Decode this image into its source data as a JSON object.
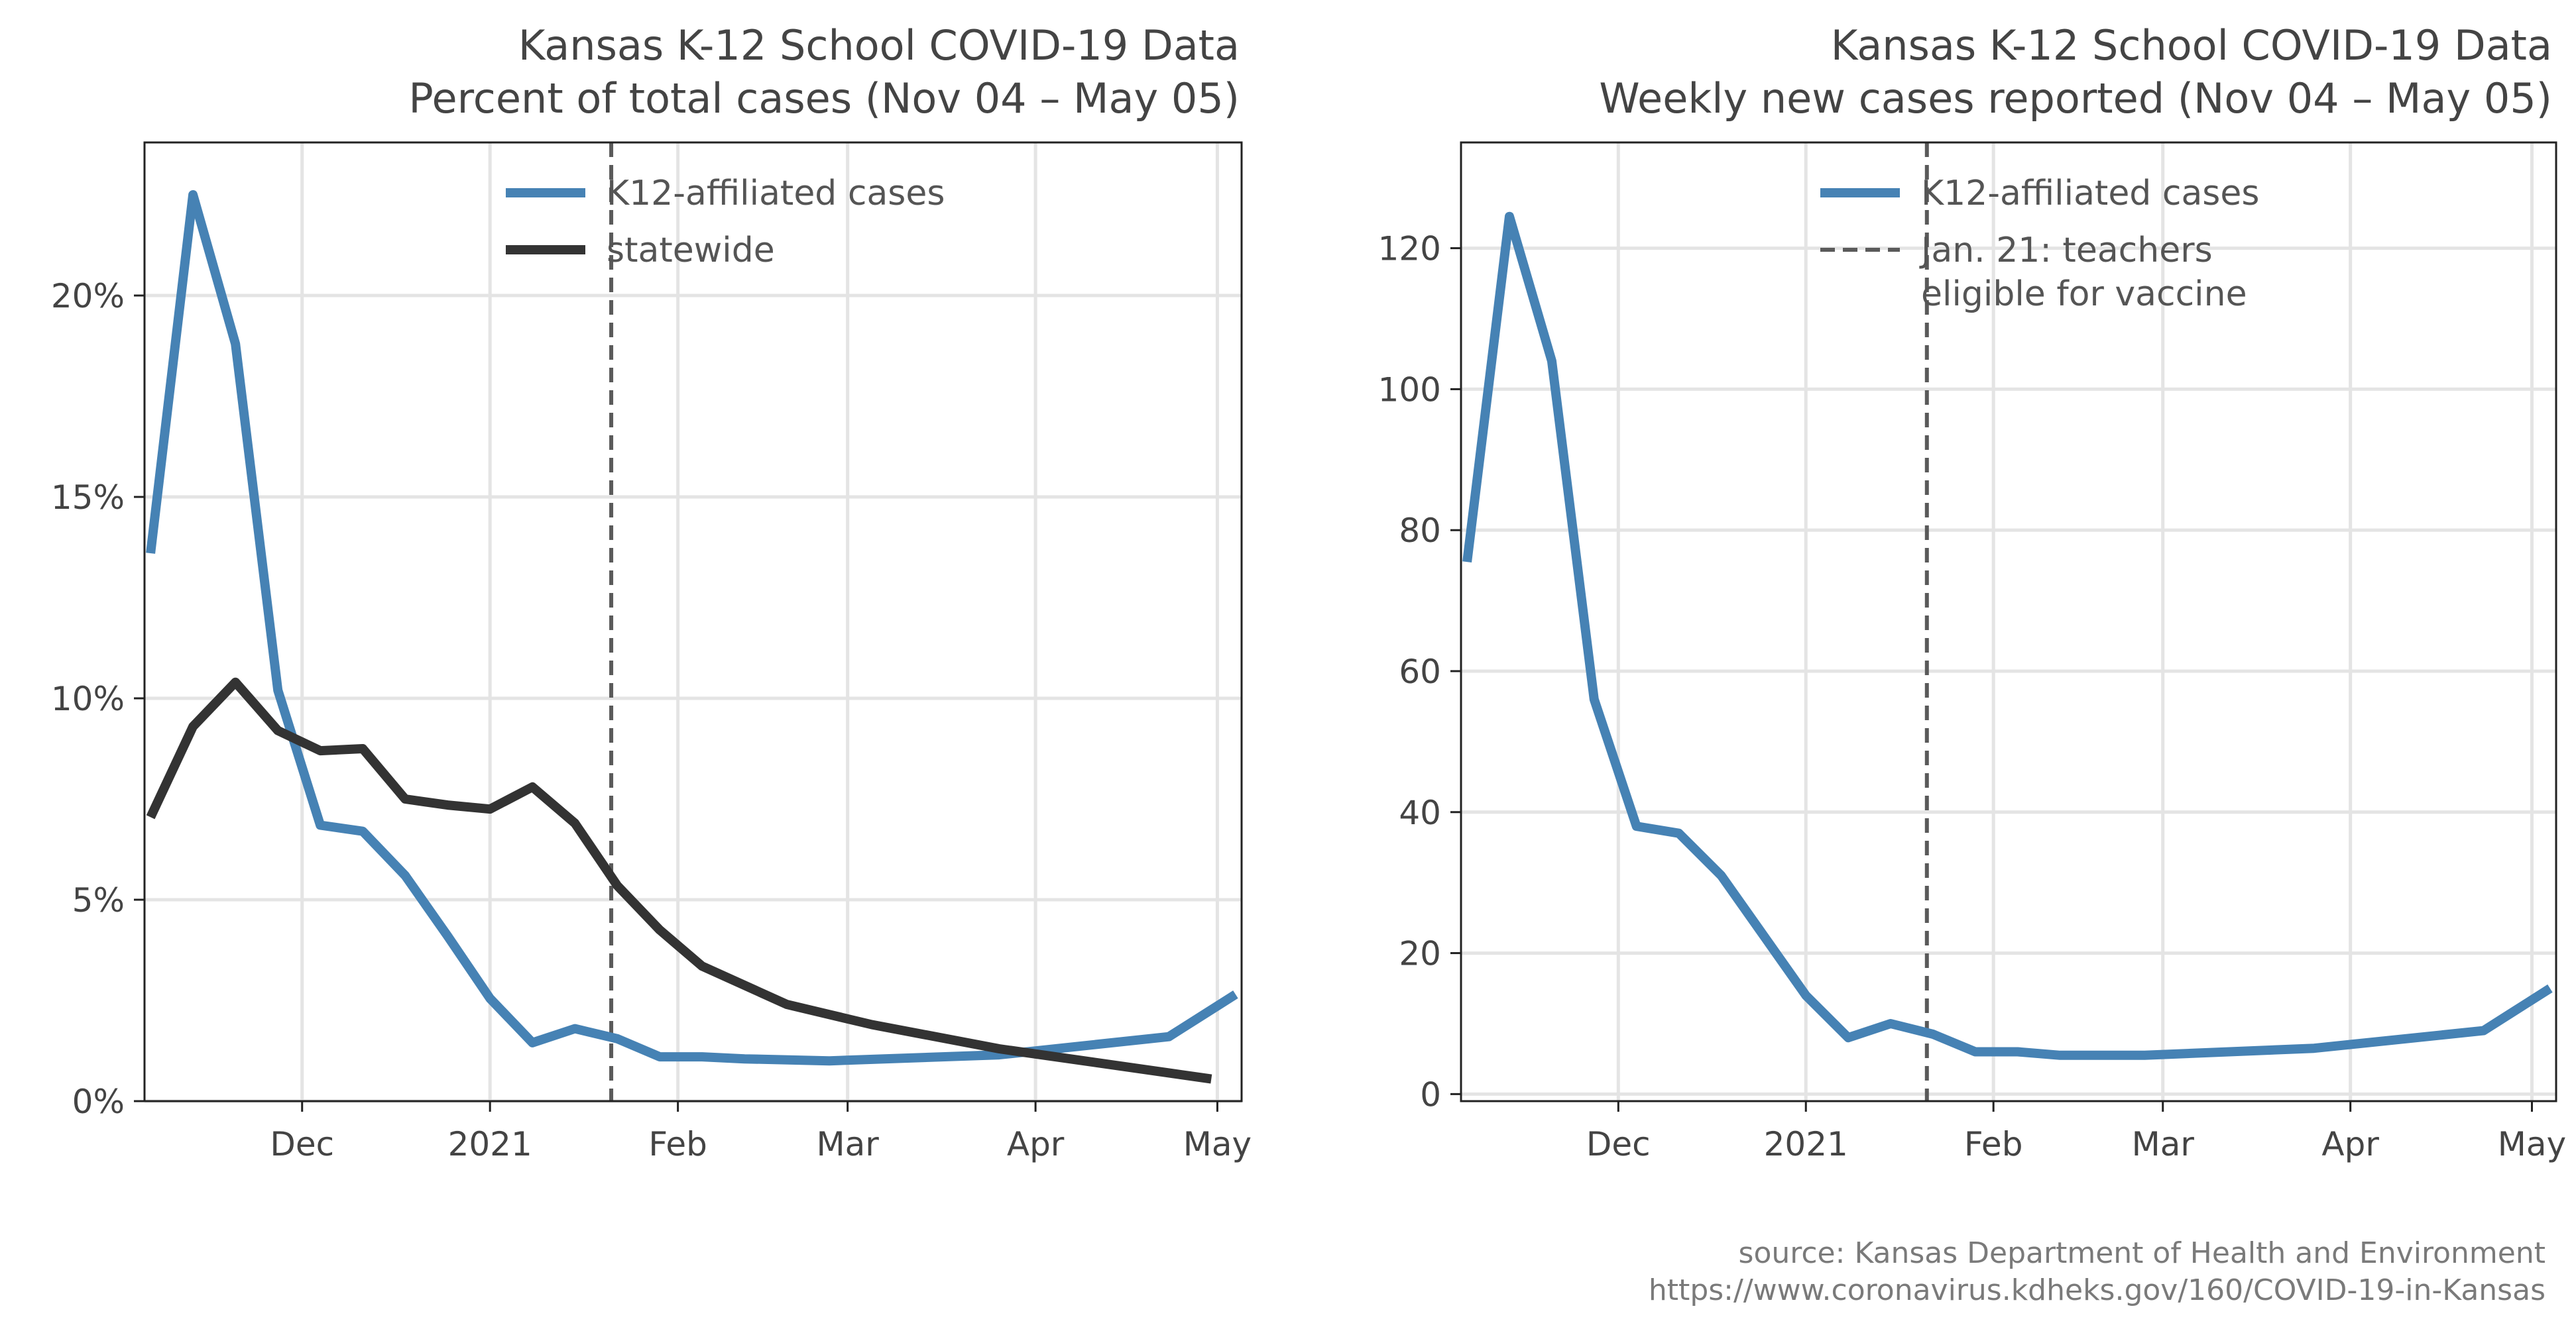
{
  "chart_data": [
    {
      "type": "line",
      "title": "Kansas K-12 School COVID-19 Data",
      "subtitle": "Percent of total cases (Nov 04 – May 05)",
      "xlabel": "",
      "ylabel": "",
      "x_ticks": [
        {
          "date": "2020-12-01",
          "label": "Dec"
        },
        {
          "date": "2021-01-01",
          "label": "2021"
        },
        {
          "date": "2021-02-01",
          "label": "Feb"
        },
        {
          "date": "2021-03-01",
          "label": "Mar"
        },
        {
          "date": "2021-04-01",
          "label": "Apr"
        },
        {
          "date": "2021-05-01",
          "label": "May"
        }
      ],
      "xlim": [
        "2020-11-05",
        "2021-05-05"
      ],
      "ylim": [
        0,
        23.8
      ],
      "y_ticks": [
        {
          "value": 0,
          "label": "0%"
        },
        {
          "value": 5,
          "label": "5%"
        },
        {
          "value": 10,
          "label": "10%"
        },
        {
          "value": 15,
          "label": "15%"
        },
        {
          "value": 20,
          "label": "20%"
        }
      ],
      "grid": true,
      "legend_position": "top-right",
      "vline": {
        "date": "2021-01-21",
        "style": "dashed",
        "color": "#5a5a5a"
      },
      "series": [
        {
          "name": "K12-affiliated cases",
          "color": "#4682b4",
          "x": [
            "2020-11-06",
            "2020-11-13",
            "2020-11-20",
            "2020-11-27",
            "2020-12-04",
            "2020-12-11",
            "2020-12-18",
            "2020-12-25",
            "2021-01-01",
            "2021-01-08",
            "2021-01-15",
            "2021-01-22",
            "2021-01-29",
            "2021-02-05",
            "2021-02-12",
            "2021-02-26",
            "2021-03-26",
            "2021-04-23",
            "2021-05-04"
          ],
          "values": [
            13.6,
            22.5,
            18.8,
            10.2,
            6.85,
            6.7,
            5.6,
            4.1,
            2.55,
            1.45,
            1.8,
            1.55,
            1.1,
            1.1,
            1.05,
            1.0,
            1.15,
            1.6,
            2.65
          ]
        },
        {
          "name": "statewide",
          "color": "#333333",
          "x": [
            "2020-11-06",
            "2020-11-13",
            "2020-11-20",
            "2020-11-27",
            "2020-12-04",
            "2020-12-11",
            "2020-12-18",
            "2020-12-25",
            "2021-01-01",
            "2021-01-08",
            "2021-01-15",
            "2021-01-22",
            "2021-01-29",
            "2021-02-05",
            "2021-02-19",
            "2021-03-05",
            "2021-03-26",
            "2021-04-09",
            "2021-04-23",
            "2021-04-30"
          ],
          "values": [
            7.05,
            9.3,
            10.4,
            9.2,
            8.7,
            8.75,
            7.5,
            7.35,
            7.25,
            7.8,
            6.9,
            5.35,
            4.25,
            3.35,
            2.4,
            1.9,
            1.3,
            1.0,
            0.7,
            0.55
          ]
        }
      ]
    },
    {
      "type": "line",
      "title": "Kansas K-12 School COVID-19 Data",
      "subtitle": "Weekly new cases reported (Nov 04 – May 05)",
      "xlabel": "",
      "ylabel": "",
      "x_ticks": [
        {
          "date": "2020-12-01",
          "label": "Dec"
        },
        {
          "date": "2021-01-01",
          "label": "2021"
        },
        {
          "date": "2021-02-01",
          "label": "Feb"
        },
        {
          "date": "2021-03-01",
          "label": "Mar"
        },
        {
          "date": "2021-04-01",
          "label": "Apr"
        },
        {
          "date": "2021-05-01",
          "label": "May"
        }
      ],
      "xlim": [
        "2020-11-05",
        "2021-05-05"
      ],
      "ylim": [
        -1,
        135
      ],
      "y_ticks": [
        {
          "value": 0,
          "label": "0"
        },
        {
          "value": 20,
          "label": "20"
        },
        {
          "value": 40,
          "label": "40"
        },
        {
          "value": 60,
          "label": "60"
        },
        {
          "value": 80,
          "label": "80"
        },
        {
          "value": 100,
          "label": "100"
        },
        {
          "value": 120,
          "label": "120"
        }
      ],
      "grid": true,
      "legend_position": "top-right",
      "vline": {
        "date": "2021-01-21",
        "style": "dashed",
        "color": "#5a5a5a",
        "legend_label": "Jan. 21: teachers eligible for vaccine"
      },
      "series": [
        {
          "name": "K12-affiliated cases",
          "color": "#4682b4",
          "x": [
            "2020-11-06",
            "2020-11-13",
            "2020-11-20",
            "2020-11-27",
            "2020-12-04",
            "2020-12-11",
            "2020-12-18",
            "2020-12-25",
            "2021-01-01",
            "2021-01-08",
            "2021-01-15",
            "2021-01-22",
            "2021-01-29",
            "2021-02-05",
            "2021-02-12",
            "2021-02-26",
            "2021-03-26",
            "2021-04-23",
            "2021-05-04"
          ],
          "values": [
            75.5,
            124.5,
            104,
            56,
            38,
            37,
            31,
            22.5,
            14,
            8,
            10,
            8.5,
            6,
            6,
            5.5,
            5.5,
            6.5,
            9,
            15
          ]
        }
      ]
    }
  ],
  "legend_left": {
    "items": [
      {
        "label": "K12-affiliated cases",
        "color": "#4682b4",
        "style": "solid"
      },
      {
        "label": "statewide",
        "color": "#333333",
        "style": "solid"
      }
    ]
  },
  "legend_right": {
    "items": [
      {
        "label": "K12-affiliated cases",
        "color": "#4682b4",
        "style": "solid"
      },
      {
        "label": "Jan. 21: teachers\neligible for vaccine",
        "color": "#5a5a5a",
        "style": "dashed"
      }
    ]
  },
  "source": {
    "line1": "source: Kansas Department of Health and Environment",
    "line2": "https://www.coronavirus.kdheks.gov/160/COVID-19-in-Kansas"
  }
}
